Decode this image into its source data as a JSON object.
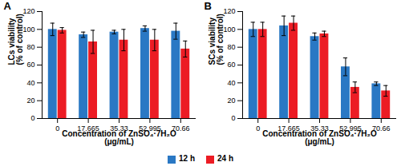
{
  "chart_data": [
    {
      "type": "bar",
      "title": "A",
      "xlabel": "Concentration of ZnSO₄·7H₂O\n(μg/mL)",
      "ylabel": "LCs viability\n(% of control)",
      "categories": [
        "0",
        "17.665",
        "35.33",
        "52.995",
        "70.66"
      ],
      "series": [
        {
          "name": "12 h",
          "color": "#2a78c4",
          "values": [
            100,
            94,
            97,
            101,
            98
          ],
          "errors": [
            7,
            3,
            2,
            3,
            9
          ]
        },
        {
          "name": "24 h",
          "color": "#ec1c24",
          "values": [
            99,
            86,
            88,
            88,
            78
          ],
          "errors": [
            3,
            13,
            12,
            12,
            9
          ]
        }
      ],
      "ylim": [
        0,
        120
      ],
      "yticks": [
        0,
        20,
        40,
        60,
        80,
        100,
        120
      ]
    },
    {
      "type": "bar",
      "title": "B",
      "xlabel": "Concentration of ZnSO₄·7H₂O\n(μg/mL)",
      "ylabel": "SCs viability\n(% of control)",
      "categories": [
        "0",
        "17.665",
        "35.33",
        "52.995",
        "70.66"
      ],
      "series": [
        {
          "name": "12 h",
          "color": "#2a78c4",
          "values": [
            100,
            104,
            92,
            58,
            39
          ],
          "errors": [
            8,
            11,
            4,
            10,
            2
          ]
        },
        {
          "name": "24 h",
          "color": "#ec1c24",
          "values": [
            100,
            107,
            95,
            35,
            31
          ],
          "errors": [
            8,
            8,
            3,
            6,
            6
          ]
        }
      ],
      "ylim": [
        0,
        120
      ],
      "yticks": [
        0,
        20,
        40,
        60,
        80,
        100,
        120
      ]
    }
  ]
}
